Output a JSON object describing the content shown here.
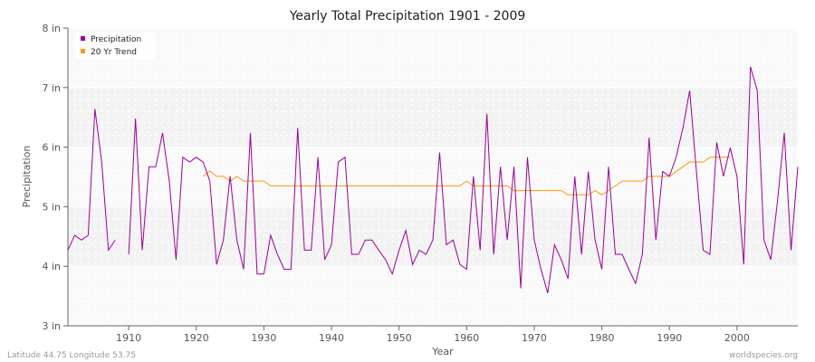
{
  "chart_data": {
    "type": "line",
    "title": "Yearly Total Precipitation 1901 - 2009",
    "xlabel": "Year",
    "ylabel": "Precipitation",
    "xlim": [
      1901,
      2009
    ],
    "ylim": [
      3,
      8
    ],
    "x_ticks": [
      1910,
      1920,
      1930,
      1940,
      1950,
      1960,
      1970,
      1980,
      1990,
      2000
    ],
    "y_ticks": [
      {
        "value": 3,
        "label": "3 in"
      },
      {
        "value": 4,
        "label": "4 in"
      },
      {
        "value": 5,
        "label": "5 in"
      },
      {
        "value": 6,
        "label": "6 in"
      },
      {
        "value": 7,
        "label": "7 in"
      },
      {
        "value": 8,
        "label": "8 in"
      }
    ],
    "grid": true,
    "legend_position": "top-left",
    "series": [
      {
        "name": "Precipitation",
        "color": "#990099",
        "x_start": 1901,
        "values": [
          4.27,
          4.52,
          4.44,
          4.52,
          6.64,
          5.75,
          4.27,
          4.44,
          null,
          4.2,
          6.48,
          4.27,
          5.67,
          5.67,
          6.24,
          5.43,
          4.11,
          5.83,
          5.75,
          5.83,
          5.75,
          5.43,
          4.03,
          4.44,
          5.51,
          4.44,
          3.95,
          6.24,
          3.87,
          3.87,
          4.52,
          4.2,
          3.95,
          3.95,
          6.32,
          4.27,
          4.27,
          5.83,
          4.11,
          4.36,
          5.75,
          5.83,
          4.2,
          4.2,
          4.44,
          4.44,
          4.27,
          4.11,
          3.87,
          4.27,
          4.6,
          4.03,
          4.27,
          4.2,
          4.44,
          5.91,
          4.36,
          4.44,
          4.03,
          3.95,
          5.51,
          4.27,
          6.56,
          4.2,
          5.67,
          4.44,
          5.67,
          3.63,
          5.83,
          4.44,
          3.95,
          3.55,
          4.36,
          4.11,
          3.79,
          5.51,
          4.2,
          5.59,
          4.44,
          3.95,
          5.67,
          4.2,
          4.2,
          3.95,
          3.71,
          4.2,
          6.16,
          4.44,
          5.59,
          5.51,
          5.83,
          6.32,
          6.95,
          5.59,
          4.27,
          4.2,
          6.08,
          5.51,
          5.99,
          5.51,
          4.03,
          7.35,
          6.95,
          4.44,
          4.11,
          5.1,
          6.24,
          4.27,
          5.67
        ]
      },
      {
        "name": "20 Yr Trend",
        "color": "#ff9900",
        "points": [
          [
            1921,
            5.51
          ],
          [
            1922,
            5.6
          ],
          [
            1923,
            5.51
          ],
          [
            1924,
            5.51
          ],
          [
            1925,
            5.43
          ],
          [
            1926,
            5.51
          ],
          [
            1927,
            5.43
          ],
          [
            1928,
            5.43
          ],
          [
            1929,
            5.43
          ],
          [
            1930,
            5.43
          ],
          [
            1931,
            5.35
          ],
          [
            1932,
            5.35
          ],
          [
            1933,
            5.35
          ],
          [
            1934,
            5.35
          ],
          [
            1935,
            5.35
          ],
          [
            1936,
            5.35
          ],
          [
            1937,
            5.35
          ],
          [
            1938,
            5.35
          ],
          [
            1939,
            5.35
          ],
          [
            1940,
            5.35
          ],
          [
            1941,
            5.35
          ],
          [
            1942,
            5.35
          ],
          [
            1943,
            5.35
          ],
          [
            1944,
            5.35
          ],
          [
            1945,
            5.35
          ],
          [
            1946,
            5.35
          ],
          [
            1947,
            5.35
          ],
          [
            1948,
            5.35
          ],
          [
            1949,
            5.35
          ],
          [
            1950,
            5.35
          ],
          [
            1951,
            5.35
          ],
          [
            1952,
            5.35
          ],
          [
            1953,
            5.35
          ],
          [
            1954,
            5.35
          ],
          [
            1955,
            5.35
          ],
          [
            1956,
            5.35
          ],
          [
            1957,
            5.35
          ],
          [
            1958,
            5.35
          ],
          [
            1959,
            5.35
          ],
          [
            1960,
            5.43
          ],
          [
            1961,
            5.35
          ],
          [
            1962,
            5.35
          ],
          [
            1963,
            5.35
          ],
          [
            1964,
            5.35
          ],
          [
            1965,
            5.35
          ],
          [
            1966,
            5.35
          ],
          [
            1967,
            5.27
          ],
          [
            1968,
            5.27
          ],
          [
            1969,
            5.27
          ],
          [
            1970,
            5.27
          ],
          [
            1971,
            5.27
          ],
          [
            1972,
            5.27
          ],
          [
            1973,
            5.27
          ],
          [
            1974,
            5.27
          ],
          [
            1975,
            5.2
          ],
          [
            1976,
            5.2
          ],
          [
            1977,
            5.2
          ],
          [
            1978,
            5.2
          ],
          [
            1979,
            5.27
          ],
          [
            1980,
            5.2
          ],
          [
            1981,
            5.27
          ],
          [
            1982,
            5.35
          ],
          [
            1983,
            5.43
          ],
          [
            1984,
            5.43
          ],
          [
            1985,
            5.43
          ],
          [
            1986,
            5.43
          ],
          [
            1987,
            5.51
          ],
          [
            1988,
            5.51
          ],
          [
            1989,
            5.51
          ],
          [
            1990,
            5.51
          ],
          [
            1991,
            5.59
          ],
          [
            1992,
            5.67
          ],
          [
            1993,
            5.75
          ],
          [
            1994,
            5.75
          ],
          [
            1995,
            5.75
          ],
          [
            1996,
            5.83
          ],
          [
            1997,
            5.83
          ],
          [
            1998,
            5.83
          ],
          [
            1999,
            5.83
          ]
        ]
      }
    ]
  },
  "footer": {
    "location": "Latitude 44.75 Longitude 53.75",
    "source": "worldspecies.org"
  }
}
